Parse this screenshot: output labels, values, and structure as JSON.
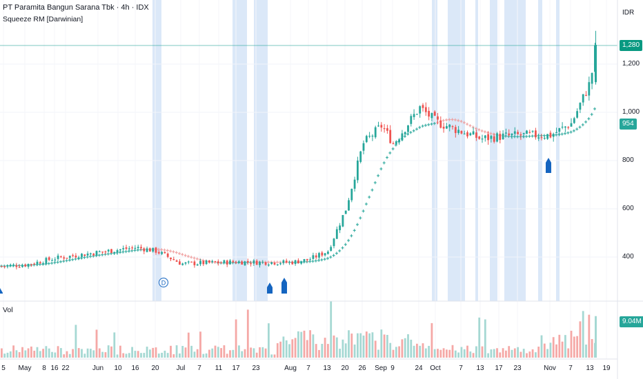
{
  "header": {
    "title": "PT Paramita Bangun Sarana Tbk · 4h · IDX",
    "indicator": "Squeeze RM [Darwinian]",
    "volume_label": "Vol",
    "currency": "IDR"
  },
  "badges": {
    "last_price": "1,280",
    "ma_value": "954",
    "volume_value": "9.04M"
  },
  "colors": {
    "up": "#26a69a",
    "down": "#ef5350",
    "squeeze_band": "#dbe8f8",
    "signal_arrow": "#1565c0",
    "last_price_badge": "#089981",
    "ma_cross": "#26a69a"
  },
  "chart_data": {
    "type": "candlestick",
    "title": "PT Paramita Bangun Sarana Tbk · 4h · IDX",
    "price_axis": {
      "ticks": [
        {
          "value": 400,
          "label": "400"
        },
        {
          "value": 600,
          "label": "600"
        },
        {
          "value": 800,
          "label": "800"
        },
        {
          "value": 1000,
          "label": "1,000"
        },
        {
          "value": 1200,
          "label": "1,200"
        }
      ],
      "range": [
        290,
        1370
      ]
    },
    "time_axis": {
      "ticks": [
        "5",
        "May",
        "8",
        "16",
        "22",
        "Jun",
        "10",
        "16",
        "20",
        "Jul",
        "7",
        "11",
        "17",
        "23",
        "Aug",
        "7",
        "13",
        "20",
        "26",
        "Sep",
        "9",
        "24",
        "Oct",
        "7",
        "13",
        "17",
        "23",
        "Nov",
        "7",
        "13",
        "19"
      ]
    },
    "price_anchors": [
      {
        "time": "5",
        "price": 362
      },
      {
        "time": "May",
        "price": 368
      },
      {
        "time": "16",
        "price": 395
      },
      {
        "time": "Jun",
        "price": 420
      },
      {
        "time": "16",
        "price": 440
      },
      {
        "time": "20",
        "price": 425
      },
      {
        "time": "Jul",
        "price": 372
      },
      {
        "time": "17",
        "price": 380
      },
      {
        "time": "23",
        "price": 378
      },
      {
        "time": "Aug",
        "price": 378
      },
      {
        "time": "7",
        "price": 390
      },
      {
        "time": "13",
        "price": 425
      },
      {
        "time": "20",
        "price": 600
      },
      {
        "time": "26",
        "price": 870
      },
      {
        "time": "Sep",
        "price": 945
      },
      {
        "time": "9",
        "price": 870
      },
      {
        "time": "24",
        "price": 1020
      },
      {
        "time": "Oct",
        "price": 960
      },
      {
        "time": "7",
        "price": 920
      },
      {
        "time": "13",
        "price": 890
      },
      {
        "time": "17",
        "price": 900
      },
      {
        "time": "23",
        "price": 905
      },
      {
        "time": "Nov",
        "price": 905
      },
      {
        "time": "7",
        "price": 955
      },
      {
        "time": "13",
        "price": 1130
      },
      {
        "time": "19",
        "price": 1280
      }
    ],
    "moving_average": {
      "last_value": 954
    },
    "squeeze_bands": [
      [
        "Jun 20",
        "Jun 21"
      ],
      [
        "Jul 16",
        "Jul 21"
      ],
      [
        "Jul 23",
        "Jul 26"
      ],
      [
        "Sep 27",
        "Sep 28"
      ],
      [
        "Oct 1",
        "Oct 6"
      ],
      [
        "Oct 12",
        "Oct 13"
      ],
      [
        "Oct 17",
        "Oct 18"
      ],
      [
        "Oct 21",
        "Oct 26"
      ],
      [
        "Nov 3",
        "Nov 4"
      ],
      [
        "Nov 7",
        "Nov 8"
      ]
    ],
    "signal_arrows": [
      "May 1",
      "Jul 24",
      "Jul 28",
      "Nov 3"
    ],
    "marker": {
      "time": "Jun 20",
      "label": "D"
    },
    "volume": {
      "last_value": "9.04M",
      "peak_value": 9.5
    }
  }
}
